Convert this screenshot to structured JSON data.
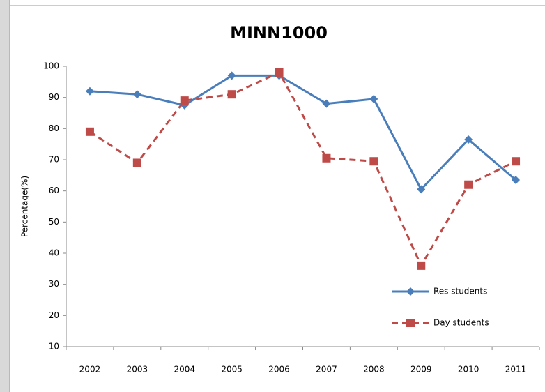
{
  "chart_data": {
    "type": "line",
    "title": "MINN1000",
    "y_label": "Percentage(%)",
    "categories": [
      "2002",
      "2003",
      "2004",
      "2005",
      "2006",
      "2007",
      "2008",
      "2009",
      "2010",
      "2011"
    ],
    "series": [
      {
        "name": "Res students",
        "color": "#4a7ebb",
        "marker": "diamond",
        "dashed": false,
        "values": [
          92,
          91,
          87.5,
          97,
          97,
          88,
          89.5,
          60.5,
          76.5,
          63.5
        ]
      },
      {
        "name": "Day students",
        "color": "#be4b48",
        "marker": "square",
        "dashed": true,
        "values": [
          79,
          69,
          89,
          91,
          98,
          70.5,
          69.5,
          36,
          62,
          69.5
        ]
      }
    ],
    "ylim": [
      10,
      100
    ],
    "yticks": [
      10,
      20,
      30,
      40,
      50,
      60,
      70,
      80,
      90,
      100
    ],
    "grid": false,
    "legend": "lower right"
  }
}
